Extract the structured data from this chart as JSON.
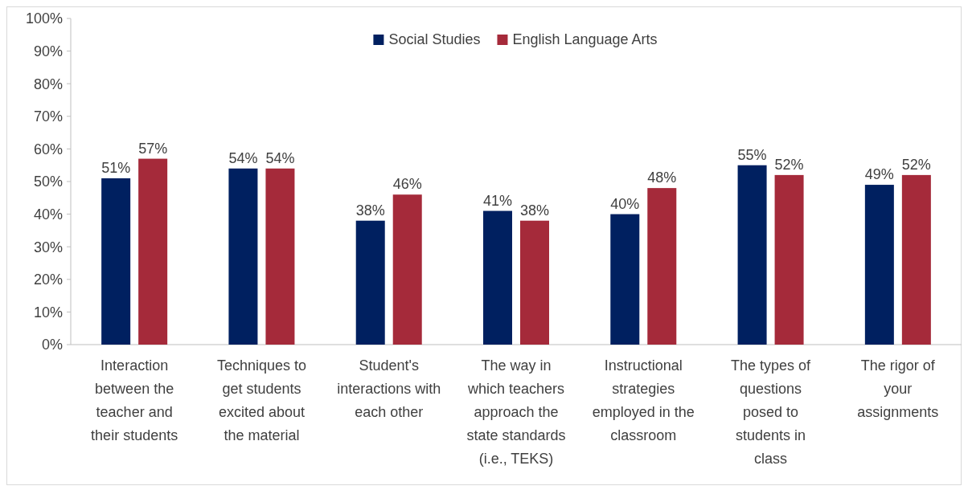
{
  "chart_data": {
    "type": "bar",
    "categories": [
      "Interaction between the teacher and their students",
      "Techniques to get students excited about the material",
      "Student's interactions with each other",
      "The way in which teachers approach the state standards (i.e., TEKS)",
      "Instructional strategies employed in the classroom",
      "The types of questions posed to students in class",
      "The rigor of your assignments"
    ],
    "series": [
      {
        "name": "Social Studies",
        "color": "#002060",
        "values": [
          51,
          54,
          38,
          41,
          40,
          55,
          49
        ],
        "value_labels": [
          "51%",
          "54%",
          "38%",
          "41%",
          "40%",
          "55%",
          "49%"
        ]
      },
      {
        "name": "English Language Arts",
        "color": "#a52a3a",
        "values": [
          57,
          54,
          46,
          38,
          48,
          52,
          52
        ],
        "value_labels": [
          "57%",
          "54%",
          "46%",
          "38%",
          "48%",
          "52%",
          "52%"
        ]
      }
    ],
    "ylim": [
      0,
      100
    ],
    "yticks": [
      {
        "value": 0,
        "label": "0%"
      },
      {
        "value": 10,
        "label": "10%"
      },
      {
        "value": 20,
        "label": "20%"
      },
      {
        "value": 30,
        "label": "30%"
      },
      {
        "value": 40,
        "label": "40%"
      },
      {
        "value": 50,
        "label": "50%"
      },
      {
        "value": 60,
        "label": "60%"
      },
      {
        "value": 70,
        "label": "70%"
      },
      {
        "value": 80,
        "label": "80%"
      },
      {
        "value": 90,
        "label": "90%"
      },
      {
        "value": 100,
        "label": "100%"
      }
    ],
    "legend": "top",
    "grid": false
  }
}
